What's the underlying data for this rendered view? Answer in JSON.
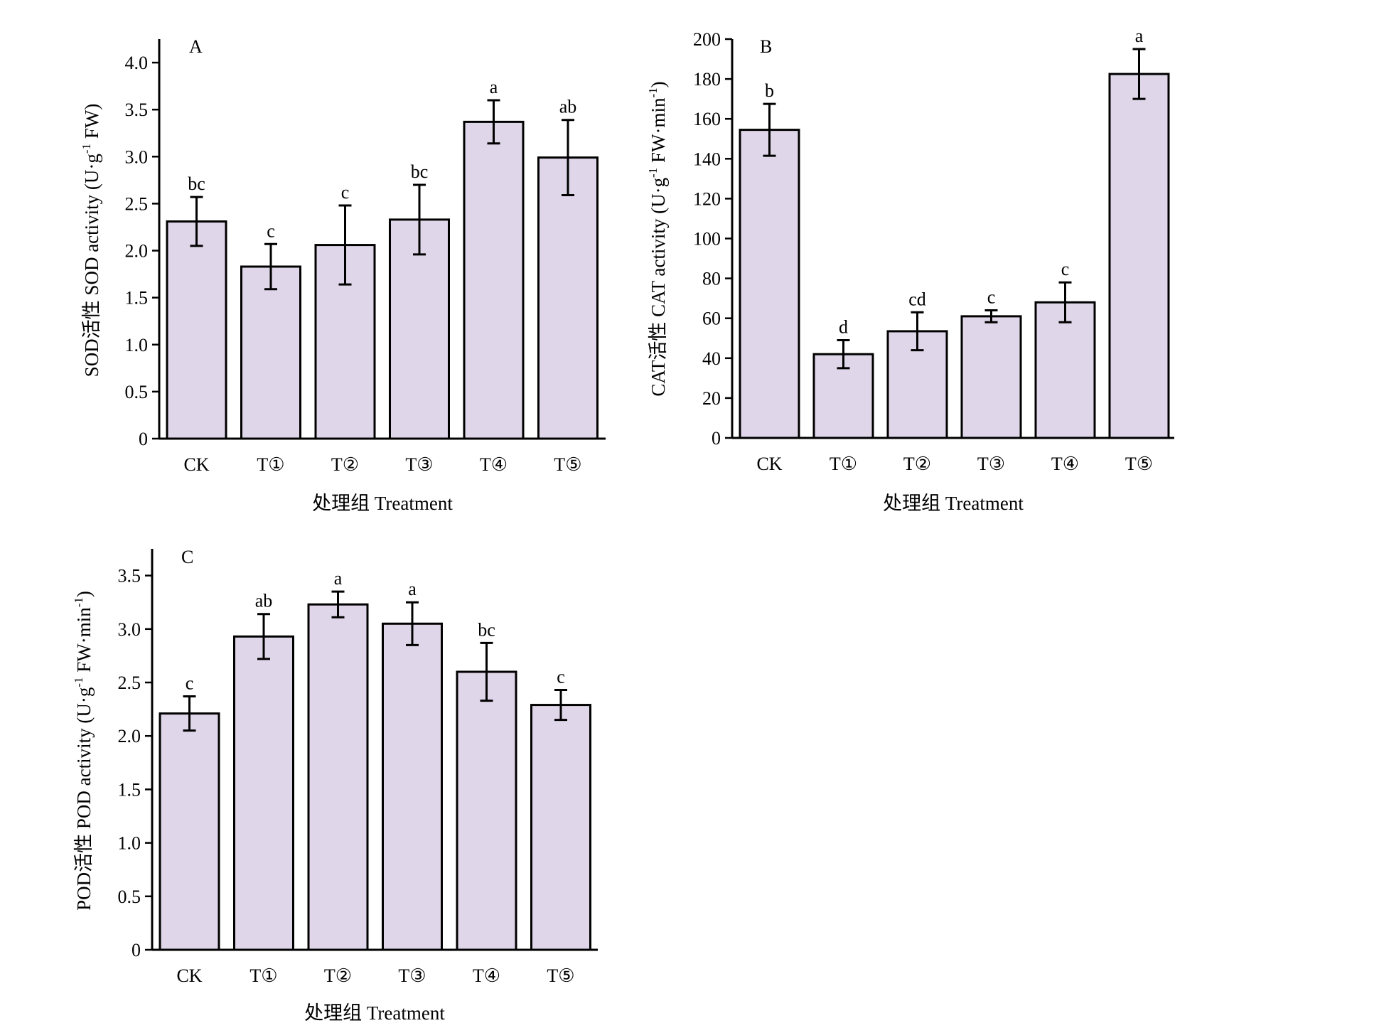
{
  "chart_data": [
    {
      "type": "bar",
      "panel_label": "A",
      "categories": [
        "CK",
        "T①",
        "T②",
        "T③",
        "T④",
        "T⑤"
      ],
      "values": [
        2.31,
        1.83,
        2.06,
        2.33,
        3.37,
        2.99
      ],
      "errors": [
        0.26,
        0.24,
        0.42,
        0.37,
        0.23,
        0.4
      ],
      "letters": [
        "bc",
        "c",
        "c",
        "bc",
        "a",
        "ab"
      ],
      "ylim": [
        0,
        4.25
      ],
      "yticks": [
        0,
        0.5,
        1.0,
        1.5,
        2.0,
        2.5,
        3.0,
        3.5,
        4.0
      ],
      "ytick_labels": [
        "0",
        "0.5",
        "1.0",
        "1.5",
        "2.0",
        "2.5",
        "3.0",
        "3.5",
        "4.0"
      ],
      "ylabel_pre": "SOD活性 SOD activity (U·g",
      "ylabel_sup": "-1",
      "ylabel_post": " FW)",
      "xlabel": "处理组 Treatment",
      "bar_color": "#e0d6e9"
    },
    {
      "type": "bar",
      "panel_label": "B",
      "categories": [
        "CK",
        "T①",
        "T②",
        "T③",
        "T④",
        "T⑤"
      ],
      "values": [
        154.5,
        42,
        53.5,
        61,
        68,
        182.5
      ],
      "errors": [
        13,
        7,
        9.5,
        3,
        10,
        12.5
      ],
      "letters": [
        "b",
        "d",
        "cd",
        "c",
        "c",
        "a"
      ],
      "ylim": [
        0,
        200
      ],
      "yticks": [
        0,
        20,
        40,
        60,
        80,
        100,
        120,
        140,
        160,
        180,
        200
      ],
      "ytick_labels": [
        "0",
        "20",
        "40",
        "60",
        "80",
        "100",
        "120",
        "140",
        "160",
        "180",
        "200"
      ],
      "ylabel_pre": "CAT活性 CAT activity (U·g",
      "ylabel_sup": "-1",
      "ylabel_mid": " FW·min",
      "ylabel_sup2": "-1",
      "ylabel_post": ")",
      "xlabel": "处理组 Treatment",
      "bar_color": "#e0d6e9"
    },
    {
      "type": "bar",
      "panel_label": "C",
      "categories": [
        "CK",
        "T①",
        "T②",
        "T③",
        "T④",
        "T⑤"
      ],
      "values": [
        2.21,
        2.93,
        3.23,
        3.05,
        2.6,
        2.29
      ],
      "errors": [
        0.16,
        0.21,
        0.12,
        0.2,
        0.27,
        0.14
      ],
      "letters": [
        "c",
        "ab",
        "a",
        "a",
        "bc",
        "c"
      ],
      "ylim": [
        0,
        3.75
      ],
      "yticks": [
        0,
        0.5,
        1.0,
        1.5,
        2.0,
        2.5,
        3.0,
        3.5
      ],
      "ytick_labels": [
        "0",
        "0.5",
        "1.0",
        "1.5",
        "2.0",
        "2.5",
        "3.0",
        "3.5"
      ],
      "ylabel_pre": "POD活性 POD activity (U·g",
      "ylabel_sup": "-1",
      "ylabel_mid": " FW·min",
      "ylabel_sup2": "-1",
      "ylabel_post": ")",
      "xlabel": "处理组 Treatment",
      "bar_color": "#e0d6e9"
    }
  ]
}
